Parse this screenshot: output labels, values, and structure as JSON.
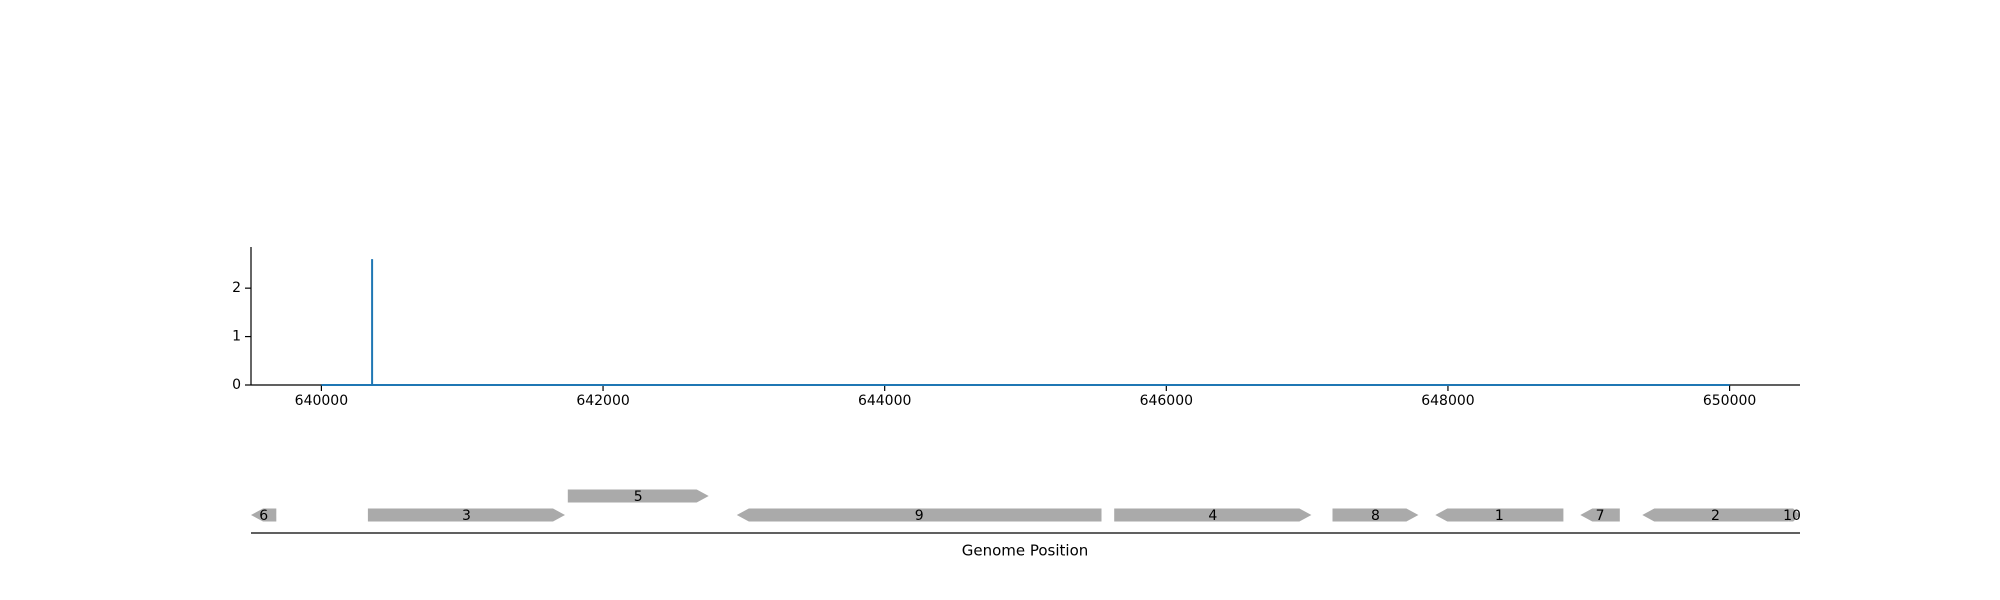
{
  "chart_data": [
    {
      "type": "line",
      "title": "",
      "xlabel": "",
      "ylabel": "",
      "xlim": [
        639500,
        650500
      ],
      "ylim": [
        0,
        2.85
      ],
      "x_ticks": [
        640000,
        642000,
        644000,
        646000,
        648000,
        650000
      ],
      "x_tick_labels": [
        "640000",
        "642000",
        "644000",
        "646000",
        "648000",
        "650000"
      ],
      "y_ticks": [
        0,
        1,
        2
      ],
      "y_tick_labels": [
        "0",
        "1",
        "2"
      ],
      "grid": false,
      "series": [
        {
          "color": "#1f77b4",
          "x": [
            640000,
            640360,
            640360,
            640360,
            650000
          ],
          "y": [
            0,
            0,
            2.6,
            0,
            0
          ]
        }
      ]
    },
    {
      "type": "gene_map",
      "xlabel": "Genome Position",
      "xlim": [
        639500,
        650500
      ],
      "color": "#aaaaaa",
      "genes": [
        {
          "label": "6",
          "start": 639500,
          "end": 639680,
          "strand": "-",
          "row": 0
        },
        {
          "label": "3",
          "start": 640330,
          "end": 641730,
          "strand": "+",
          "row": 0
        },
        {
          "label": "5",
          "start": 641750,
          "end": 642750,
          "strand": "+",
          "row": 1
        },
        {
          "label": "9",
          "start": 642950,
          "end": 645540,
          "strand": "-",
          "row": 0
        },
        {
          "label": "4",
          "start": 645630,
          "end": 647030,
          "strand": "+",
          "row": 0
        },
        {
          "label": "8",
          "start": 647180,
          "end": 647790,
          "strand": "+",
          "row": 0
        },
        {
          "label": "1",
          "start": 647910,
          "end": 648820,
          "strand": "-",
          "row": 0
        },
        {
          "label": "7",
          "start": 648940,
          "end": 649220,
          "strand": "-",
          "row": 0
        },
        {
          "label": "2",
          "start": 649380,
          "end": 650420,
          "strand": "-",
          "row": 0
        },
        {
          "label": "10",
          "start": 650420,
          "end": 650500,
          "strand": "+",
          "row": 0
        }
      ]
    }
  ]
}
